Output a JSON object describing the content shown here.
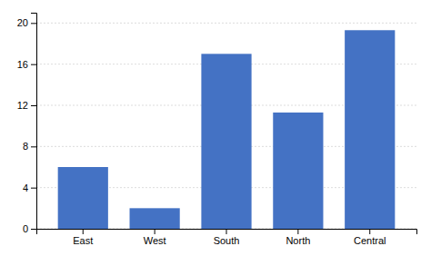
{
  "chart_data": {
    "type": "bar",
    "categories": [
      "East",
      "West",
      "South",
      "North",
      "Central"
    ],
    "values": [
      6.0,
      2.0,
      17.0,
      11.3,
      19.3
    ],
    "color": "#4472c4",
    "ylim": [
      0,
      21
    ],
    "yticks": [
      0,
      4,
      8,
      12,
      16,
      20
    ],
    "grid": true
  }
}
